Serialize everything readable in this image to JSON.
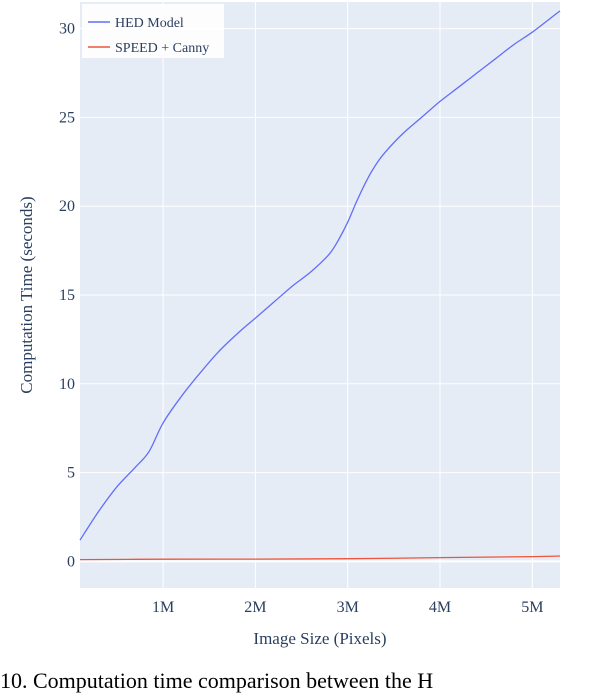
{
  "chart_data": {
    "type": "line",
    "xlabel": "Image Size (Pixels)",
    "ylabel": "Computation Time (seconds)",
    "xlim": [
      0.1,
      5.3
    ],
    "ylim": [
      -1.5,
      31.5
    ],
    "x_ticks": [
      {
        "value": 1,
        "label": "1M"
      },
      {
        "value": 2,
        "label": "2M"
      },
      {
        "value": 3,
        "label": "3M"
      },
      {
        "value": 4,
        "label": "4M"
      },
      {
        "value": 5,
        "label": "5M"
      }
    ],
    "y_ticks": [
      {
        "value": 0,
        "label": "0"
      },
      {
        "value": 5,
        "label": "5"
      },
      {
        "value": 10,
        "label": "10"
      },
      {
        "value": 15,
        "label": "15"
      },
      {
        "value": 20,
        "label": "20"
      },
      {
        "value": 25,
        "label": "25"
      },
      {
        "value": 30,
        "label": "30"
      }
    ],
    "grid": true,
    "legend_position": "top-left",
    "series": [
      {
        "name": "HED Model",
        "color": "#636efa",
        "x": [
          0.1,
          0.3,
          0.5,
          0.7,
          0.85,
          1.0,
          1.2,
          1.4,
          1.6,
          1.8,
          2.0,
          2.2,
          2.4,
          2.6,
          2.8,
          2.9,
          3.0,
          3.1,
          3.2,
          3.3,
          3.4,
          3.6,
          3.8,
          4.0,
          4.2,
          4.4,
          4.6,
          4.8,
          5.0,
          5.2,
          5.3
        ],
        "values": [
          1.2,
          2.8,
          4.2,
          5.3,
          6.2,
          7.8,
          9.3,
          10.6,
          11.8,
          12.8,
          13.7,
          14.6,
          15.5,
          16.3,
          17.3,
          18.1,
          19.1,
          20.3,
          21.4,
          22.3,
          23.0,
          24.1,
          25.0,
          25.9,
          26.7,
          27.5,
          28.3,
          29.1,
          29.8,
          30.6,
          31.0
        ]
      },
      {
        "name": "SPEED + Canny",
        "color": "#ef553b",
        "x": [
          0.1,
          1.0,
          2.0,
          3.0,
          4.0,
          5.0,
          5.3
        ],
        "values": [
          0.1,
          0.12,
          0.13,
          0.15,
          0.21,
          0.27,
          0.3
        ]
      }
    ]
  },
  "caption": "10.  Computation time comparison between the H"
}
